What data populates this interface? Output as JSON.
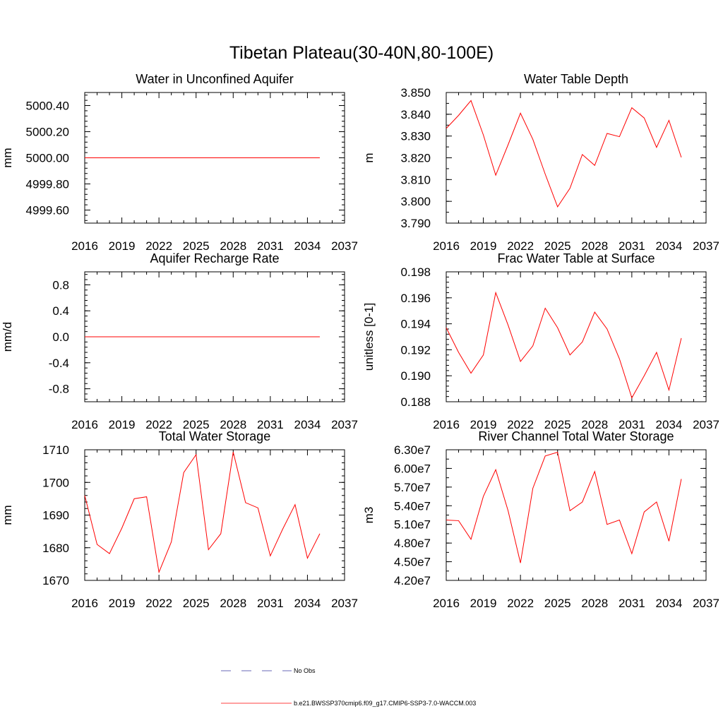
{
  "title": "Tibetan Plateau(30-40N,80-100E)",
  "line_color": "#ff0000",
  "obs_color": "#3a3aa0",
  "legend": {
    "items": [
      {
        "label": "No Obs",
        "style": "dashed",
        "color": "#3a3aa0"
      },
      {
        "label": "b.e21.BWSSP370cmip6.f09_g17.CMIP6-SSP3-7.0-WACCM.003",
        "style": "solid",
        "color": "#ff0000"
      }
    ]
  },
  "chart_data": [
    {
      "type": "line",
      "title": "Water in Unconfined Aquifer",
      "ylabel": "mm",
      "xlim": [
        2016,
        2037
      ],
      "ylim": [
        4999.5,
        5000.5
      ],
      "xticks": [
        2016,
        2019,
        2022,
        2025,
        2028,
        2031,
        2034,
        2037
      ],
      "yticks": [
        4999.6,
        4999.8,
        5000.0,
        5000.2,
        5000.4
      ],
      "ytick_labels": [
        "4999.60",
        "4999.80",
        "5000.00",
        "5000.20",
        "5000.40"
      ],
      "x": [
        2016,
        2017,
        2018,
        2019,
        2020,
        2021,
        2022,
        2023,
        2024,
        2025,
        2026,
        2027,
        2028,
        2029,
        2030,
        2031,
        2032,
        2033,
        2034,
        2035
      ],
      "series": [
        {
          "values": [
            5000,
            5000,
            5000,
            5000,
            5000,
            5000,
            5000,
            5000,
            5000,
            5000,
            5000,
            5000,
            5000,
            5000,
            5000,
            5000,
            5000,
            5000,
            5000,
            5000
          ]
        }
      ]
    },
    {
      "type": "line",
      "title": "Water Table Depth",
      "ylabel": "m",
      "xlim": [
        2016,
        2037
      ],
      "ylim": [
        3.79,
        3.85
      ],
      "xticks": [
        2016,
        2019,
        2022,
        2025,
        2028,
        2031,
        2034,
        2037
      ],
      "yticks": [
        3.79,
        3.8,
        3.81,
        3.82,
        3.83,
        3.84,
        3.85
      ],
      "ytick_labels": [
        "3.790",
        "3.800",
        "3.810",
        "3.820",
        "3.830",
        "3.840",
        "3.850"
      ],
      "x": [
        2016,
        2017,
        2018,
        2019,
        2020,
        2021,
        2022,
        2023,
        2024,
        2025,
        2026,
        2027,
        2028,
        2029,
        2030,
        2031,
        2032,
        2033,
        2034,
        2035
      ],
      "series": [
        {
          "values": [
            3.8335,
            3.8395,
            3.8463,
            3.8305,
            3.812,
            3.826,
            3.8405,
            3.8285,
            3.8125,
            3.7975,
            3.806,
            3.8215,
            3.8165,
            3.8312,
            3.8297,
            3.843,
            3.8383,
            3.8248,
            3.8372,
            3.8202
          ]
        }
      ]
    },
    {
      "type": "line",
      "title": "Aquifer Recharge Rate",
      "ylabel": "mm/d",
      "xlim": [
        2016,
        2037
      ],
      "ylim": [
        -1.0,
        1.0
      ],
      "xticks": [
        2016,
        2019,
        2022,
        2025,
        2028,
        2031,
        2034,
        2037
      ],
      "yticks": [
        -0.8,
        -0.4,
        0.0,
        0.4,
        0.8
      ],
      "ytick_labels": [
        "-0.8",
        "-0.4",
        "0.0",
        "0.4",
        "0.8"
      ],
      "x": [
        2016,
        2017,
        2018,
        2019,
        2020,
        2021,
        2022,
        2023,
        2024,
        2025,
        2026,
        2027,
        2028,
        2029,
        2030,
        2031,
        2032,
        2033,
        2034,
        2035
      ],
      "series": [
        {
          "values": [
            0,
            0,
            0,
            0,
            0,
            0,
            0,
            0,
            0,
            0,
            0,
            0,
            0,
            0,
            0,
            0,
            0,
            0,
            0,
            0
          ]
        }
      ]
    },
    {
      "type": "line",
      "title": "Frac Water Table at Surface",
      "ylabel": "unitless [0-1]",
      "xlim": [
        2016,
        2037
      ],
      "ylim": [
        0.188,
        0.198
      ],
      "xticks": [
        2016,
        2019,
        2022,
        2025,
        2028,
        2031,
        2034,
        2037
      ],
      "yticks": [
        0.188,
        0.19,
        0.192,
        0.194,
        0.196,
        0.198
      ],
      "ytick_labels": [
        "0.188",
        "0.190",
        "0.192",
        "0.194",
        "0.196",
        "0.198"
      ],
      "x": [
        2016,
        2017,
        2018,
        2019,
        2020,
        2021,
        2022,
        2023,
        2024,
        2025,
        2026,
        2027,
        2028,
        2029,
        2030,
        2031,
        2032,
        2033,
        2034,
        2035
      ],
      "series": [
        {
          "values": [
            0.1937,
            0.1918,
            0.1902,
            0.1916,
            0.1964,
            0.1939,
            0.1911,
            0.1923,
            0.1952,
            0.1937,
            0.1916,
            0.1926,
            0.1949,
            0.1936,
            0.1913,
            0.1883,
            0.19,
            0.1918,
            0.1889,
            0.1929
          ]
        }
      ]
    },
    {
      "type": "line",
      "title": "Total Water Storage",
      "ylabel": "mm",
      "xlim": [
        2016,
        2037
      ],
      "ylim": [
        1670,
        1710
      ],
      "xticks": [
        2016,
        2019,
        2022,
        2025,
        2028,
        2031,
        2034,
        2037
      ],
      "yticks": [
        1670,
        1680,
        1690,
        1700,
        1710
      ],
      "ytick_labels": [
        "1670",
        "1680",
        "1690",
        "1700",
        "1710"
      ],
      "x": [
        2016,
        2017,
        2018,
        2019,
        2020,
        2021,
        2022,
        2023,
        2024,
        2025,
        2026,
        2027,
        2028,
        2029,
        2030,
        2031,
        2032,
        2033,
        2034,
        2035
      ],
      "series": [
        {
          "values": [
            1696,
            1681,
            1678.2,
            1686,
            1695,
            1695.6,
            1672.5,
            1681.8,
            1703,
            1708.5,
            1679.4,
            1684.3,
            1709.3,
            1693.8,
            1692.2,
            1677.5,
            1685.7,
            1693.2,
            1676.8,
            1684.3
          ]
        }
      ]
    },
    {
      "type": "line",
      "title": "River Channel Total Water Storage",
      "ylabel": "m3",
      "xlim": [
        2016,
        2037
      ],
      "ylim": [
        42000000,
        63000000
      ],
      "xticks": [
        2016,
        2019,
        2022,
        2025,
        2028,
        2031,
        2034,
        2037
      ],
      "yticks": [
        42000000,
        45000000,
        48000000,
        51000000,
        54000000,
        57000000,
        60000000,
        63000000
      ],
      "ytick_labels": [
        "4.20e7",
        "4.50e7",
        "4.80e7",
        "5.10e7",
        "5.40e7",
        "5.70e7",
        "6.00e7",
        "6.30e7"
      ],
      "x": [
        2016,
        2017,
        2018,
        2019,
        2020,
        2021,
        2022,
        2023,
        2024,
        2025,
        2026,
        2027,
        2028,
        2029,
        2030,
        2031,
        2032,
        2033,
        2034,
        2035
      ],
      "series": [
        {
          "values": [
            51700000,
            51600000,
            48600000,
            55500000,
            59800000,
            53200000,
            44800000,
            56800000,
            62000000,
            62600000,
            53200000,
            54600000,
            59500000,
            51000000,
            51700000,
            46300000,
            53000000,
            54600000,
            48300000,
            58300000
          ]
        }
      ]
    }
  ]
}
